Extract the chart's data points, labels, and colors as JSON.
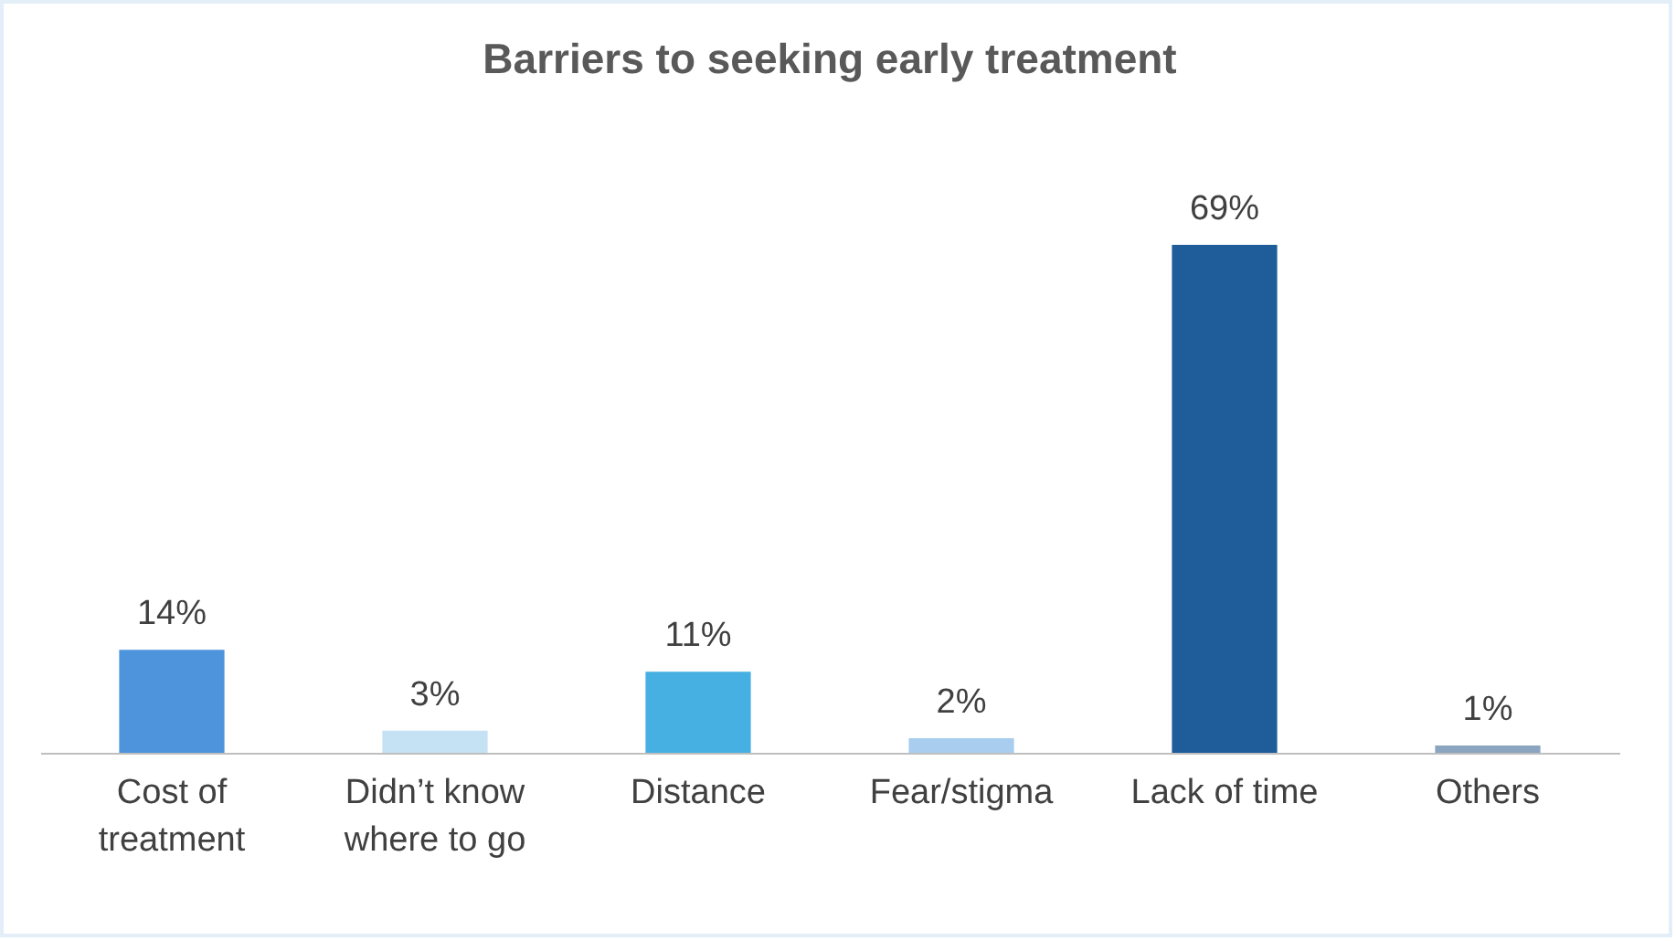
{
  "chart_data": {
    "type": "bar",
    "title": "Barriers to seeking early treatment",
    "categories": [
      "Cost of treatment",
      "Didn’t know where to go",
      "Distance",
      "Fear/stigma",
      "Lack of time",
      "Others"
    ],
    "values": [
      14,
      3,
      11,
      2,
      69,
      1
    ],
    "value_labels": [
      "14%",
      "3%",
      "11%",
      "2%",
      "69%",
      "1%"
    ],
    "colors": [
      "#4e94dc",
      "#c4e2f4",
      "#45b0e1",
      "#a8cdee",
      "#1f5d9a",
      "#8ba4bf"
    ]
  }
}
